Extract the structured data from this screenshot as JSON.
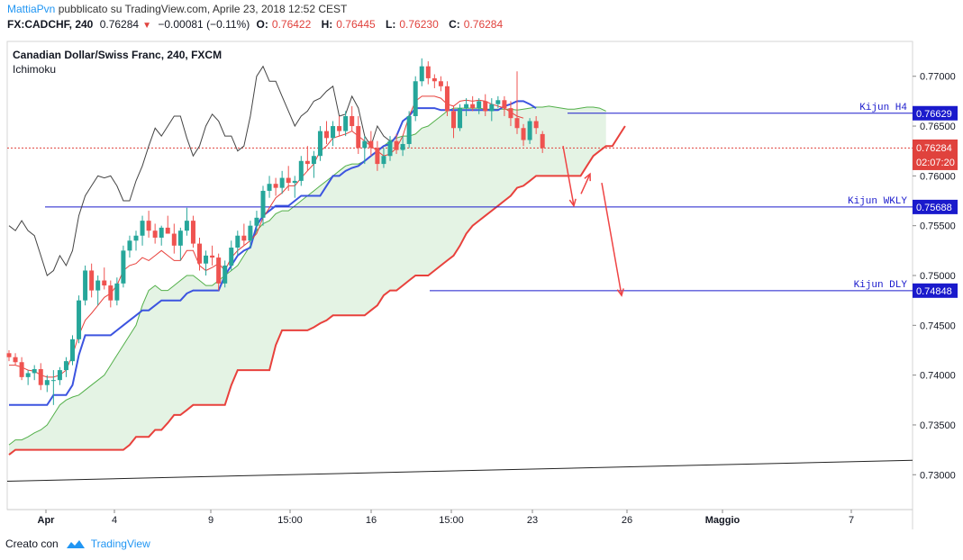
{
  "header": {
    "author": "MattiaPvn",
    "published_text": "pubblicato su TradingView.com, Aprile 23, 2018 12:52 CEST",
    "symbol": "FX:CADCHF, 240",
    "last": "0.76284",
    "change": "−0.00081 (−0.11%)",
    "o_label": "O:",
    "o_value": "0.76422",
    "h_label": "H:",
    "h_value": "0.76445",
    "l_label": "L:",
    "l_value": "0.76230",
    "c_label": "C:",
    "c_value": "0.76284"
  },
  "footer": {
    "created_with": "Creato con",
    "brand": "TradingView"
  },
  "colors": {
    "up": "#26a69a",
    "down": "#ef5350",
    "kijun": "#3c54e0",
    "tenkan": "#e8413c",
    "span_a": "#53b04a",
    "span_b": "#e8413c",
    "lagging": "#444444",
    "cloud": "#e4f3e4",
    "level_line": "#1a1acc",
    "arrow": "#ef4444"
  },
  "chart_data": {
    "type": "candlestick",
    "title": "Canadian Dollar/Swiss Franc, 240, FXCM",
    "indicator": "Ichimoku",
    "y_range": [
      0.7265,
      0.7735
    ],
    "y_ticks": [
      "0.77000",
      "0.76500",
      "0.76000",
      "0.75500",
      "0.75000",
      "0.74500",
      "0.74000",
      "0.73500",
      "0.73000"
    ],
    "x_labels": [
      "Apr",
      "4",
      "9",
      "15:00",
      "16",
      "15:00",
      "23",
      "26",
      "Maggio",
      "7"
    ],
    "current_price_label": "0.76284",
    "countdown_label": "02:07:20",
    "levels": [
      {
        "name": "Kijun H4",
        "value": 0.76629,
        "label": "0.76629"
      },
      {
        "name": "Kijun WKLY",
        "value": 0.75688,
        "label": "0.75688"
      },
      {
        "name": "Kijun DLY",
        "value": 0.74848,
        "label": "0.74848"
      }
    ],
    "candles": [
      [
        0.7422,
        0.7425,
        0.7414,
        0.7418
      ],
      [
        0.7418,
        0.7422,
        0.741,
        0.7413
      ],
      [
        0.7413,
        0.7418,
        0.7395,
        0.7398
      ],
      [
        0.7398,
        0.7405,
        0.739,
        0.7402
      ],
      [
        0.7402,
        0.741,
        0.7395,
        0.7406
      ],
      [
        0.7406,
        0.7412,
        0.7385,
        0.739
      ],
      [
        0.739,
        0.74,
        0.7383,
        0.7395
      ],
      [
        0.7395,
        0.7405,
        0.737,
        0.7395
      ],
      [
        0.7395,
        0.7408,
        0.739,
        0.7405
      ],
      [
        0.7405,
        0.7418,
        0.7398,
        0.7414
      ],
      [
        0.7414,
        0.744,
        0.741,
        0.7436
      ],
      [
        0.7436,
        0.748,
        0.7432,
        0.7475
      ],
      [
        0.7475,
        0.751,
        0.747,
        0.7505
      ],
      [
        0.7505,
        0.7512,
        0.7478,
        0.7485
      ],
      [
        0.7485,
        0.75,
        0.747,
        0.7495
      ],
      [
        0.7495,
        0.7508,
        0.7486,
        0.749
      ],
      [
        0.749,
        0.7495,
        0.7468,
        0.7475
      ],
      [
        0.7475,
        0.7498,
        0.747,
        0.7492
      ],
      [
        0.7492,
        0.753,
        0.7488,
        0.7525
      ],
      [
        0.7525,
        0.754,
        0.7518,
        0.7535
      ],
      [
        0.7535,
        0.7545,
        0.7525,
        0.754
      ],
      [
        0.754,
        0.756,
        0.753,
        0.7555
      ],
      [
        0.7555,
        0.7565,
        0.7538,
        0.7545
      ],
      [
        0.7545,
        0.7552,
        0.7532,
        0.7538
      ],
      [
        0.7538,
        0.755,
        0.753,
        0.7548
      ],
      [
        0.7548,
        0.756,
        0.7542,
        0.7542
      ],
      [
        0.7542,
        0.7552,
        0.7522,
        0.753
      ],
      [
        0.753,
        0.7548,
        0.7515,
        0.7545
      ],
      [
        0.7545,
        0.7568,
        0.754,
        0.7555
      ],
      [
        0.7555,
        0.756,
        0.7528,
        0.7532
      ],
      [
        0.7532,
        0.7538,
        0.7505,
        0.7512
      ],
      [
        0.7512,
        0.7525,
        0.75,
        0.752
      ],
      [
        0.752,
        0.753,
        0.751,
        0.7518
      ],
      [
        0.7518,
        0.7522,
        0.7485,
        0.7492
      ],
      [
        0.7492,
        0.7515,
        0.7488,
        0.751
      ],
      [
        0.751,
        0.7535,
        0.7505,
        0.7528
      ],
      [
        0.7528,
        0.7545,
        0.752,
        0.754
      ],
      [
        0.754,
        0.7552,
        0.753,
        0.7535
      ],
      [
        0.7535,
        0.7555,
        0.7528,
        0.755
      ],
      [
        0.755,
        0.7565,
        0.7545,
        0.7558
      ],
      [
        0.7558,
        0.759,
        0.755,
        0.7585
      ],
      [
        0.7585,
        0.76,
        0.7578,
        0.7592
      ],
      [
        0.7592,
        0.7598,
        0.758,
        0.7588
      ],
      [
        0.7588,
        0.7605,
        0.7582,
        0.7598
      ],
      [
        0.7598,
        0.761,
        0.7585,
        0.7593
      ],
      [
        0.7593,
        0.76,
        0.7578,
        0.7595
      ],
      [
        0.7595,
        0.762,
        0.759,
        0.7615
      ],
      [
        0.7615,
        0.763,
        0.7605,
        0.7612
      ],
      [
        0.7612,
        0.7625,
        0.7598,
        0.762
      ],
      [
        0.762,
        0.765,
        0.7615,
        0.7645
      ],
      [
        0.7645,
        0.7655,
        0.7632,
        0.7638
      ],
      [
        0.7638,
        0.7655,
        0.763,
        0.765
      ],
      [
        0.765,
        0.766,
        0.764,
        0.7645
      ],
      [
        0.7645,
        0.7665,
        0.764,
        0.766
      ],
      [
        0.766,
        0.767,
        0.7645,
        0.765
      ],
      [
        0.765,
        0.766,
        0.7622,
        0.7628
      ],
      [
        0.7628,
        0.764,
        0.7612,
        0.7635
      ],
      [
        0.7635,
        0.7645,
        0.762,
        0.7628
      ],
      [
        0.7628,
        0.7635,
        0.7605,
        0.7612
      ],
      [
        0.7612,
        0.7628,
        0.7608,
        0.762
      ],
      [
        0.762,
        0.764,
        0.7615,
        0.7635
      ],
      [
        0.7635,
        0.7642,
        0.7622,
        0.7626
      ],
      [
        0.7626,
        0.764,
        0.762,
        0.7632
      ],
      [
        0.7632,
        0.7665,
        0.7628,
        0.766
      ],
      [
        0.766,
        0.77,
        0.7655,
        0.7695
      ],
      [
        0.7695,
        0.7718,
        0.769,
        0.771
      ],
      [
        0.771,
        0.7715,
        0.7692,
        0.7698
      ],
      [
        0.7698,
        0.7702,
        0.7688,
        0.7695
      ],
      [
        0.7695,
        0.77,
        0.7685,
        0.769
      ],
      [
        0.769,
        0.7695,
        0.766,
        0.7665
      ],
      [
        0.7665,
        0.767,
        0.7638,
        0.7648
      ],
      [
        0.7648,
        0.7672,
        0.7645,
        0.7668
      ],
      [
        0.7668,
        0.7678,
        0.766,
        0.7672
      ],
      [
        0.7672,
        0.768,
        0.7665,
        0.7668
      ],
      [
        0.7668,
        0.7678,
        0.7662,
        0.7675
      ],
      [
        0.7675,
        0.7682,
        0.766,
        0.7665
      ],
      [
        0.7665,
        0.7678,
        0.7655,
        0.7672
      ],
      [
        0.7672,
        0.768,
        0.7668,
        0.7676
      ],
      [
        0.7676,
        0.768,
        0.766,
        0.7668
      ],
      [
        0.7668,
        0.7675,
        0.765,
        0.7658
      ],
      [
        0.7658,
        0.7705,
        0.7642,
        0.7648
      ],
      [
        0.7648,
        0.7652,
        0.763,
        0.7636
      ],
      [
        0.7636,
        0.7658,
        0.7632,
        0.7655
      ],
      [
        0.7655,
        0.766,
        0.7642,
        0.7648
      ],
      [
        0.7642,
        0.7645,
        0.7623,
        0.7628
      ]
    ],
    "kijun_h4": [
      0.737,
      0.737,
      0.737,
      0.737,
      0.737,
      0.737,
      0.737,
      0.738,
      0.738,
      0.738,
      0.739,
      0.742,
      0.744,
      0.744,
      0.744,
      0.744,
      0.744,
      0.7445,
      0.745,
      0.7455,
      0.746,
      0.7465,
      0.7465,
      0.747,
      0.7475,
      0.7475,
      0.7475,
      0.7475,
      0.7482,
      0.7485,
      0.7485,
      0.7485,
      0.7485,
      0.7485,
      0.75,
      0.751,
      0.752,
      0.7525,
      0.7528,
      0.755,
      0.756,
      0.7565,
      0.757,
      0.757,
      0.757,
      0.7575,
      0.758,
      0.758,
      0.758,
      0.758,
      0.759,
      0.76,
      0.76,
      0.7605,
      0.7608,
      0.761,
      0.7615,
      0.762,
      0.7625,
      0.763,
      0.7632,
      0.764,
      0.7655,
      0.766,
      0.7668,
      0.7668,
      0.7668,
      0.7668,
      0.7666,
      0.7666,
      0.7666,
      0.7666,
      0.7666,
      0.7666,
      0.7666,
      0.7666,
      0.7666,
      0.7666,
      0.767,
      0.7672,
      0.7675,
      0.7675,
      0.7672,
      0.7668
    ],
    "tenkan_h4": [
      0.741,
      0.741,
      0.7408,
      0.7405,
      0.7404,
      0.74,
      0.7398,
      0.7398,
      0.74,
      0.7405,
      0.742,
      0.744,
      0.7455,
      0.7462,
      0.747,
      0.7478,
      0.7482,
      0.749,
      0.7505,
      0.751,
      0.7512,
      0.7518,
      0.7515,
      0.752,
      0.7525,
      0.752,
      0.7515,
      0.7515,
      0.7525,
      0.7525,
      0.751,
      0.7505,
      0.7508,
      0.7512,
      0.7505,
      0.7518,
      0.7525,
      0.753,
      0.7535,
      0.7542,
      0.7558,
      0.7568,
      0.7578,
      0.7583,
      0.759,
      0.759,
      0.7598,
      0.7605,
      0.7612,
      0.7625,
      0.763,
      0.7638,
      0.764,
      0.7642,
      0.7645,
      0.764,
      0.7635,
      0.763,
      0.7625,
      0.762,
      0.7622,
      0.7628,
      0.764,
      0.766,
      0.7675,
      0.768,
      0.768,
      0.768,
      0.7678,
      0.7672,
      0.767,
      0.7675,
      0.7676,
      0.7675,
      0.7676,
      0.7675,
      0.7672,
      0.767,
      0.7668,
      0.7664,
      0.766,
      0.7658
    ],
    "span_a": [
      0.733,
      0.7335,
      0.7335,
      0.7338,
      0.7342,
      0.7345,
      0.735,
      0.736,
      0.737,
      0.7375,
      0.7378,
      0.738,
      0.7385,
      0.739,
      0.7395,
      0.74,
      0.741,
      0.742,
      0.743,
      0.744,
      0.745,
      0.747,
      0.7485,
      0.749,
      0.7485,
      0.7485,
      0.749,
      0.7495,
      0.75,
      0.75,
      0.7495,
      0.749,
      0.749,
      0.7495,
      0.75,
      0.7505,
      0.751,
      0.752,
      0.753,
      0.7545,
      0.7552,
      0.7555,
      0.7562,
      0.7565,
      0.7565,
      0.757,
      0.7575,
      0.758,
      0.7585,
      0.759,
      0.7595,
      0.76,
      0.7605,
      0.761,
      0.7612,
      0.7612,
      0.7615,
      0.762,
      0.7625,
      0.763,
      0.7635,
      0.7638,
      0.764,
      0.764,
      0.7642,
      0.7648,
      0.765,
      0.7655,
      0.766,
      0.7665,
      0.7668,
      0.7668,
      0.7668,
      0.7668,
      0.7668,
      0.7667,
      0.7667,
      0.7667,
      0.7667,
      0.7667,
      0.7666,
      0.7667,
      0.7668,
      0.7669,
      0.7669,
      0.767,
      0.7669,
      0.7668,
      0.7667,
      0.7667,
      0.7668,
      0.7669,
      0.7669,
      0.7668,
      0.7665
    ],
    "span_b": [
      0.732,
      0.7325,
      0.7325,
      0.7325,
      0.7325,
      0.7325,
      0.7325,
      0.7325,
      0.7325,
      0.7325,
      0.7325,
      0.7325,
      0.7325,
      0.7325,
      0.7325,
      0.7325,
      0.7325,
      0.7325,
      0.7325,
      0.733,
      0.7338,
      0.7338,
      0.7338,
      0.7345,
      0.7345,
      0.7352,
      0.736,
      0.736,
      0.7365,
      0.737,
      0.737,
      0.737,
      0.737,
      0.737,
      0.737,
      0.739,
      0.7405,
      0.7405,
      0.7405,
      0.7405,
      0.7405,
      0.7405,
      0.743,
      0.7445,
      0.7445,
      0.7445,
      0.7445,
      0.7445,
      0.7448,
      0.7452,
      0.7455,
      0.746,
      0.746,
      0.746,
      0.746,
      0.746,
      0.746,
      0.7465,
      0.747,
      0.748,
      0.7485,
      0.7485,
      0.749,
      0.7495,
      0.75,
      0.75,
      0.75,
      0.7505,
      0.751,
      0.7515,
      0.752,
      0.753,
      0.7542,
      0.755,
      0.7555,
      0.756,
      0.7565,
      0.757,
      0.7575,
      0.758,
      0.7588,
      0.759,
      0.7595,
      0.76,
      0.76,
      0.76,
      0.76,
      0.76,
      0.76,
      0.76,
      0.76,
      0.761,
      0.762,
      0.7625,
      0.763,
      0.763,
      0.764,
      0.765
    ],
    "lagging": [
      0.755,
      0.7545,
      0.7555,
      0.7545,
      0.754,
      0.752,
      0.75,
      0.7505,
      0.752,
      0.751,
      0.7525,
      0.756,
      0.758,
      0.759,
      0.76,
      0.7598,
      0.76,
      0.759,
      0.7575,
      0.7575,
      0.7595,
      0.761,
      0.763,
      0.7648,
      0.764,
      0.765,
      0.766,
      0.766,
      0.7638,
      0.762,
      0.763,
      0.765,
      0.7662,
      0.7655,
      0.764,
      0.764,
      0.7625,
      0.763,
      0.766,
      0.77,
      0.771,
      0.7695,
      0.7695,
      0.768,
      0.7665,
      0.765,
      0.766,
      0.7665,
      0.7675,
      0.7678,
      0.7685,
      0.769,
      0.766,
      0.7662,
      0.768,
      0.7668,
      0.764,
      0.763,
      0.765,
      0.764,
      0.7635
    ]
  }
}
